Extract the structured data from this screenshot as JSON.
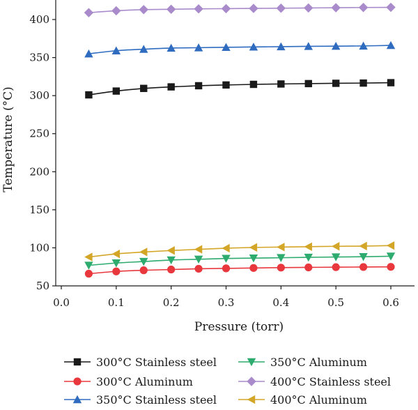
{
  "chart_data": {
    "type": "line",
    "xlabel": "Pressure (torr)",
    "ylabel": "Temperature (°C)",
    "xlim": [
      0.0,
      0.65
    ],
    "ylim": [
      50,
      420
    ],
    "xticks": [
      0.0,
      0.1,
      0.2,
      0.3,
      0.4,
      0.5,
      0.6
    ],
    "xtick_labels": [
      "0.0",
      "0.1",
      "0.2",
      "0.3",
      "0.4",
      "0.5",
      "0.6"
    ],
    "yticks": [
      50,
      100,
      150,
      200,
      250,
      300,
      350,
      400
    ],
    "ytick_labels": [
      "50",
      "100",
      "150",
      "200",
      "250",
      "300",
      "350",
      "400"
    ],
    "grid": false,
    "legend_position": "bottom",
    "x": [
      0.05,
      0.1,
      0.15,
      0.2,
      0.25,
      0.3,
      0.35,
      0.4,
      0.45,
      0.5,
      0.55,
      0.6
    ],
    "series": [
      {
        "name": "300°C Stainless steel",
        "color": "#1a1a1a",
        "marker": "square",
        "values": [
          301,
          306,
          309.5,
          311.5,
          313,
          314,
          314.8,
          315.3,
          315.8,
          316.2,
          316.5,
          317
        ]
      },
      {
        "name": "300°C Aluminum",
        "color": "#e8383d",
        "marker": "circle",
        "values": [
          66,
          69,
          70.5,
          71.5,
          72.5,
          73,
          73.5,
          74,
          74.3,
          74.6,
          74.8,
          75
        ]
      },
      {
        "name": "350°C Stainless steel",
        "color": "#2f6cc0",
        "marker": "triangle-up",
        "values": [
          355,
          359,
          361,
          362.5,
          363,
          363.5,
          364,
          364.3,
          364.8,
          365,
          365.3,
          366
        ]
      },
      {
        "name": "350°C Aluminum",
        "color": "#2eab6e",
        "marker": "triangle-down",
        "values": [
          77,
          80,
          82,
          84,
          85,
          86,
          86.5,
          87,
          87.5,
          88,
          88.3,
          89
        ]
      },
      {
        "name": "400°C Stainless steel",
        "color": "#a98bcb",
        "marker": "diamond",
        "values": [
          409,
          411.5,
          413,
          413.5,
          414,
          414.3,
          414.6,
          414.9,
          415.2,
          415.5,
          415.8,
          416
        ]
      },
      {
        "name": "400°C Aluminum",
        "color": "#d4a628",
        "marker": "triangle-left",
        "values": [
          88,
          92,
          94.5,
          96.5,
          98,
          99.5,
          100.5,
          101,
          101.5,
          102,
          102.3,
          103
        ]
      }
    ]
  }
}
